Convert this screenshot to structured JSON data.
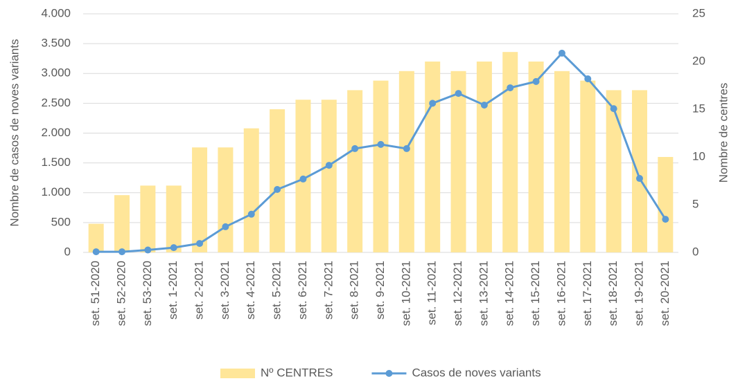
{
  "chart_data": {
    "type": "combo",
    "ylabel": "Nombre de casos de noves variants",
    "y2label": "Nombre de centres",
    "categories": [
      "set. 51-2020",
      "set. 52-2020",
      "set. 53-2020",
      "set. 1-2021",
      "set. 2-2021",
      "set. 3-2021",
      "set. 4-2021",
      "set. 5-2021",
      "set. 6-2021",
      "set. 7-2021",
      "set. 8-2021",
      "set. 9-2021",
      "set. 10-2021",
      "set. 11-2021",
      "set. 12-2021",
      "set. 13-2021",
      "set. 14-2021",
      "set. 15-2021",
      "set. 16-2021",
      "set. 17-2021",
      "set. 18-2021",
      "set. 19-2021",
      "set. 20-2021"
    ],
    "series": [
      {
        "name": "Nº CENTRES",
        "type": "bar",
        "axis": "y2",
        "color": "#ffe699",
        "values": [
          3,
          6,
          7,
          7,
          11,
          11,
          13,
          15,
          16,
          16,
          17,
          18,
          19,
          20,
          19,
          20,
          21,
          20,
          19,
          18,
          17,
          17,
          10
        ]
      },
      {
        "name": "Casos de noves variants",
        "type": "line",
        "axis": "y",
        "color": "#5b9bd5",
        "values": [
          10,
          10,
          40,
          80,
          150,
          430,
          640,
          1055,
          1230,
          1460,
          1740,
          1810,
          1740,
          2500,
          2665,
          2470,
          2760,
          2865,
          3340,
          2910,
          2410,
          1240,
          555
        ]
      }
    ],
    "ylim": [
      0,
      4000
    ],
    "yticks": [
      0,
      500,
      {
        "value": 1000,
        "label": "1.000"
      },
      {
        "value": 1500,
        "label": "1.500"
      },
      {
        "value": 2000,
        "label": "2.000"
      },
      {
        "value": 2500,
        "label": "2.500"
      },
      {
        "value": 3000,
        "label": "3.000"
      },
      {
        "value": 3500,
        "label": "3.500"
      },
      {
        "value": 4000,
        "label": "4.000"
      }
    ],
    "y2lim": [
      0,
      25
    ],
    "y2ticks": [
      0,
      5,
      10,
      15,
      20,
      25
    ],
    "grid": true,
    "legend": "bottom"
  }
}
